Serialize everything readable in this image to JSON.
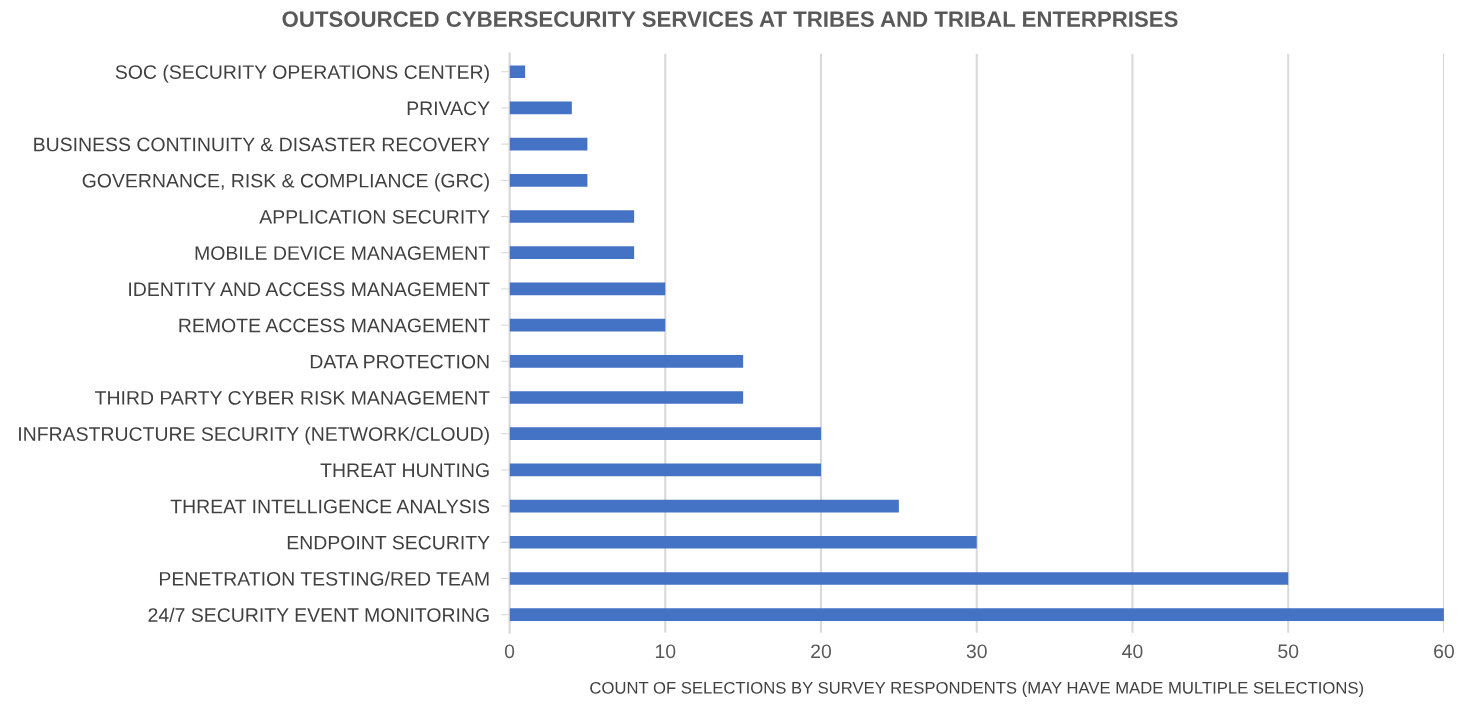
{
  "chart_data": {
    "type": "bar",
    "orientation": "horizontal",
    "title": "OUTSOURCED CYBERSECURITY SERVICES AT TRIBES AND TRIBAL ENTERPRISES",
    "xlabel": "COUNT OF SELECTIONS BY SURVEY RESPONDENTS (MAY HAVE MADE MULTIPLE SELECTIONS)",
    "categories": [
      "SOC (SECURITY OPERATIONS CENTER)",
      "PRIVACY",
      "BUSINESS CONTINUITY & DISASTER RECOVERY",
      "GOVERNANCE, RISK & COMPLIANCE (GRC)",
      "APPLICATION SECURITY",
      "MOBILE DEVICE MANAGEMENT",
      "IDENTITY AND ACCESS MANAGEMENT",
      "REMOTE ACCESS MANAGEMENT",
      "DATA PROTECTION",
      "THIRD PARTY CYBER RISK MANAGEMENT",
      "INFRASTRUCTURE SECURITY (NETWORK/CLOUD)",
      "THREAT HUNTING",
      "THREAT INTELLIGENCE ANALYSIS",
      "ENDPOINT SECURITY",
      "PENETRATION TESTING/RED TEAM",
      "24/7 SECURITY EVENT MONITORING"
    ],
    "values": [
      1,
      4,
      5,
      5,
      8,
      8,
      10,
      10,
      15,
      15,
      20,
      20,
      25,
      30,
      50,
      60
    ],
    "color": "#4472c4",
    "xlim": [
      0,
      60
    ],
    "xticks": [
      0,
      10,
      20,
      30,
      40,
      50,
      60
    ],
    "grid": "x"
  }
}
